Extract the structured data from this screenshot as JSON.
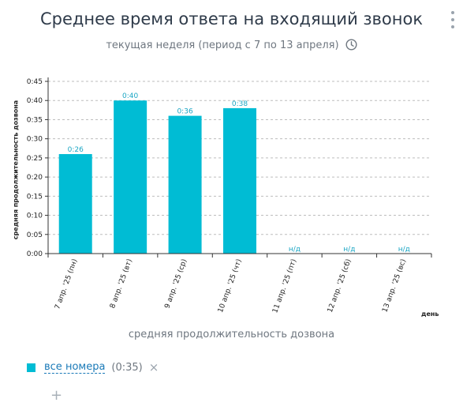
{
  "header": {
    "title": "Среднее время ответа на входящий звонок",
    "subtitle": "текущая неделя (период с 7 по 13 апреля)",
    "menu_icon": "more-vertical-icon",
    "clock_icon": "clock-icon"
  },
  "chart_data": {
    "type": "bar",
    "categories": [
      "7 апр. '25 (пн)",
      "8 апр. '25 (вт)",
      "9 апр. '25 (ср)",
      "10 апр. '25 (чт)",
      "11 апр. '25 (пт)",
      "12 апр. '25 (сб)",
      "13 апр. '25 (вс)"
    ],
    "values": [
      0.26,
      0.4,
      0.36,
      0.38,
      null,
      null,
      null
    ],
    "data_labels": [
      "0:26",
      "0:40",
      "0:36",
      "0:38",
      "н/д",
      "н/д",
      "н/д"
    ],
    "y_ticks": [
      "0:00",
      "0:05",
      "0:10",
      "0:15",
      "0:20",
      "0:25",
      "0:30",
      "0:35",
      "0:40",
      "0:45"
    ],
    "ylim": [
      0,
      0.45
    ],
    "xlabel": "день",
    "ylabel": "средняя продолжительность дозвона",
    "grid": true,
    "bar_color": "#00bcd4",
    "label_color": "#1ba6c4"
  },
  "caption": "средняя продолжительность дозвона",
  "legend": {
    "series_name": "все номера",
    "series_value": "(0:35)",
    "remove_symbol": "×",
    "add_symbol": "+"
  }
}
